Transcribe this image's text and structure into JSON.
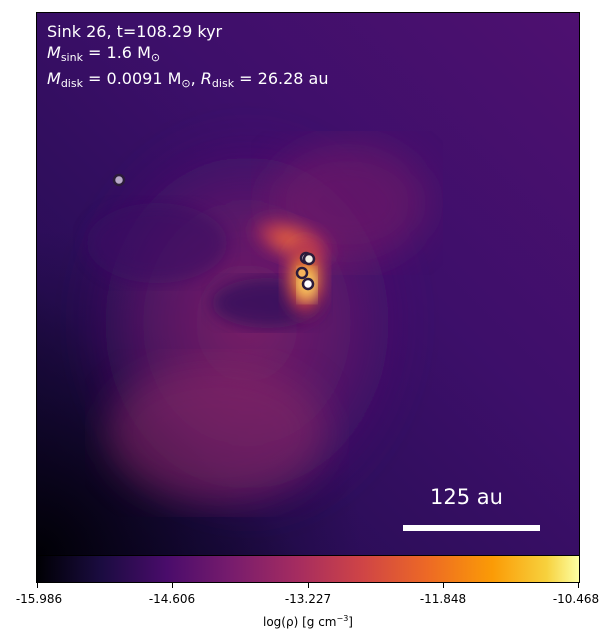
{
  "annotation": {
    "line1": "Sink 26, t=108.29 kyr",
    "msink_label": "M",
    "msink_sub": "sink",
    "msink_value": " = 1.6 M",
    "msink_unit_sub": "⊙",
    "mdisk_label": "M",
    "mdisk_sub": "disk",
    "mdisk_value": " = 0.0091 M",
    "mdisk_unit_sub": "⊙",
    "separator": ", ",
    "rdisk_label": "R",
    "rdisk_sub": "disk",
    "rdisk_value": " = 26.28 au"
  },
  "scalebar": {
    "label": "125 au"
  },
  "colorbar": {
    "ticks": [
      "-15.986",
      "-14.606",
      "-13.227",
      "-11.848",
      "-10.468"
    ],
    "title_prefix": "log(ρ) [g cm",
    "title_exp": "−3",
    "title_suffix": "]",
    "colormap": "inferno"
  },
  "sink_markers": [
    {
      "name": "sink-isolated",
      "fill": "#b8a9c9"
    },
    {
      "name": "sink-upper",
      "fill": "#f2eee6"
    },
    {
      "name": "sink-middle",
      "fill": "#f6b35c"
    },
    {
      "name": "sink-lower",
      "fill": "#ffffff"
    }
  ],
  "colors": {
    "background_dark": "#1c0a45",
    "accent_hot": "#fff4a0",
    "text": "#ffffff"
  }
}
